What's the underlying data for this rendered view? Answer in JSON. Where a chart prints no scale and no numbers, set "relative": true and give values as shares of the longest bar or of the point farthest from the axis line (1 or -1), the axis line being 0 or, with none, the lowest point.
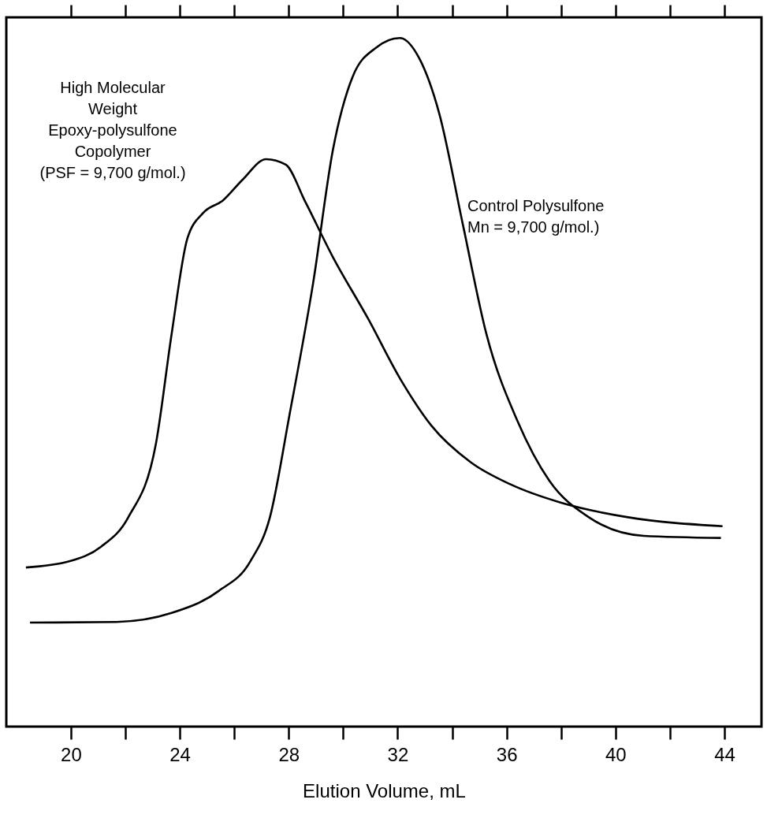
{
  "chart_data": {
    "type": "line",
    "relative": true,
    "xlabel": "Elution Volume, mL",
    "xlim": [
      17.63,
      45.36
    ],
    "xticks": [
      20,
      {
        "value": 22,
        "label": null
      },
      24,
      {
        "value": 26,
        "label": null
      },
      28,
      {
        "value": 30,
        "label": null
      },
      32,
      {
        "value": 34,
        "label": null
      },
      36,
      {
        "value": 38,
        "label": null
      },
      40,
      {
        "value": 42,
        "label": null
      },
      44
    ],
    "line_style": "solid",
    "series": [
      {
        "color": "#000000",
        "x": [
          18.35,
          19.94,
          21.1,
          22.11,
          23.12,
          23.7,
          24.28,
          24.86,
          25.58,
          26.3,
          27.17,
          27.89,
          28.61,
          29.62,
          30.92,
          32.08,
          33.24,
          34.68,
          36.13,
          38.01,
          40.46,
          43.93
        ],
        "values": [
          0.231,
          0.24,
          0.261,
          0.304,
          0.41,
          0.57,
          0.709,
          0.746,
          0.764,
          0.794,
          0.824,
          0.816,
          0.762,
          0.682,
          0.592,
          0.506,
          0.437,
          0.384,
          0.352,
          0.325,
          0.304,
          0.291
        ]
      },
      {
        "color": "#000000",
        "x": [
          18.5,
          21.68,
          23.7,
          25.43,
          26.59,
          27.31,
          28.03,
          28.9,
          29.62,
          30.35,
          31.21,
          32.08,
          32.8,
          33.53,
          34.39,
          35.26,
          36.42,
          37.57,
          39.02,
          41.04,
          43.87
        ],
        "values": [
          0.151,
          0.152,
          0.165,
          0.197,
          0.24,
          0.304,
          0.453,
          0.645,
          0.837,
          0.944,
          0.986,
          1.0,
          0.97,
          0.89,
          0.73,
          0.57,
          0.442,
          0.357,
          0.304,
          0.277,
          0.274
        ]
      }
    ],
    "annotations": [
      "High Molecular\nWeight\nEpoxy-polysulfone\nCopolymer\n(PSF = 9,700 g/mol.)",
      "Control Polysulfone\nMn = 9,700 g/mol.)"
    ]
  }
}
